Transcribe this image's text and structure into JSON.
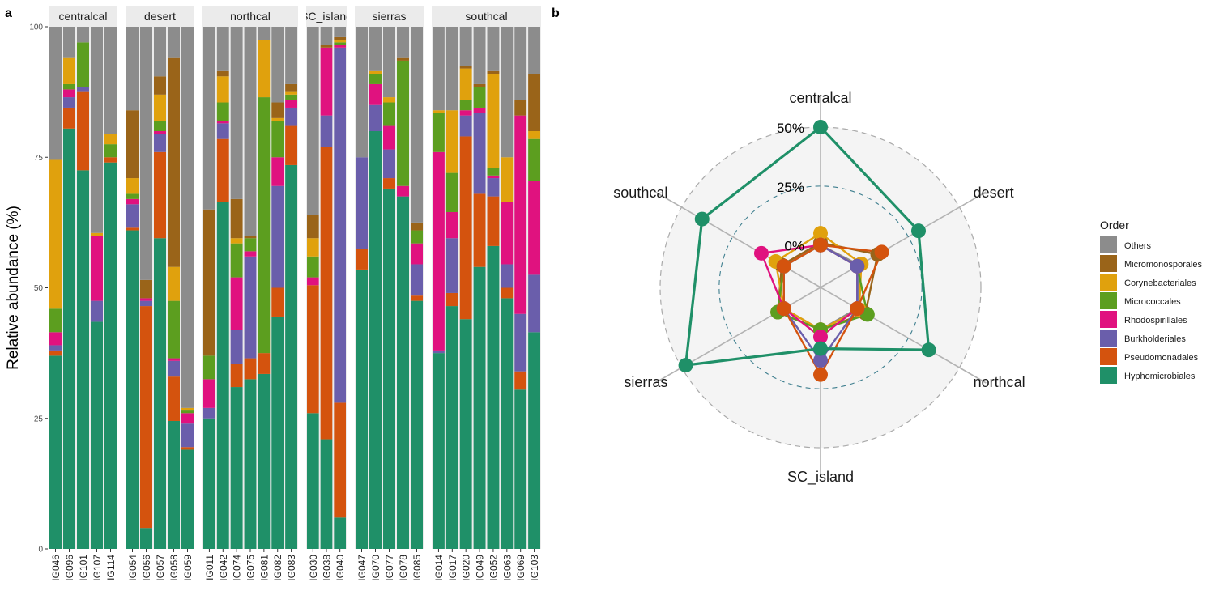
{
  "panel_labels": {
    "a": "a",
    "b": "b"
  },
  "legend": {
    "title": "Order",
    "entries": [
      {
        "label": "Others",
        "color": "#8C8C8C"
      },
      {
        "label": "Micromonosporales",
        "color": "#9A6419"
      },
      {
        "label": "Corynebacteriales",
        "color": "#E0A10D"
      },
      {
        "label": "Micrococcales",
        "color": "#5C9E1F"
      },
      {
        "label": "Rhodospirillales",
        "color": "#E0127F"
      },
      {
        "label": "Burkholderiales",
        "color": "#6A5EAB"
      },
      {
        "label": "Pseudomonadales",
        "color": "#D4530E"
      },
      {
        "label": "Hyphomicrobiales",
        "color": "#1F9068"
      }
    ]
  },
  "chart_data": [
    {
      "type": "bar",
      "stacked": true,
      "ylabel": "Relative abundance (%)",
      "ylim": [
        0,
        100
      ],
      "yticks": [
        "0",
        "25",
        "50",
        "75",
        "100"
      ],
      "stack_order_bottom_to_top": [
        "Hyphomicrobiales",
        "Pseudomonadales",
        "Burkholderiales",
        "Rhodospirillales",
        "Micrococcales",
        "Corynebacteriales",
        "Micromonosporales",
        "Others"
      ],
      "facets": [
        {
          "name": "centralcal",
          "samples": [
            {
              "id": "IG046",
              "values": [
                37,
                1,
                1,
                2.5,
                4.5,
                28.5,
                0,
                25.5
              ]
            },
            {
              "id": "IG096",
              "values": [
                80.5,
                4,
                2,
                1.5,
                1,
                5,
                0,
                6
              ]
            },
            {
              "id": "IG101",
              "values": [
                72.5,
                15,
                1,
                0,
                8.5,
                0,
                0,
                3
              ]
            },
            {
              "id": "IG107",
              "values": [
                43.5,
                0,
                4,
                12.5,
                0,
                0.5,
                0,
                39.5
              ]
            },
            {
              "id": "IG114",
              "values": [
                74,
                1,
                0,
                0,
                2.5,
                2,
                0,
                20.5
              ]
            }
          ]
        },
        {
          "name": "desert",
          "samples": [
            {
              "id": "IG054",
              "values": [
                61,
                0.5,
                4.5,
                1,
                1,
                3,
                13,
                16
              ]
            },
            {
              "id": "IG056",
              "values": [
                4,
                42.5,
                1,
                0.5,
                0,
                0,
                3.5,
                48.5
              ]
            },
            {
              "id": "IG057",
              "values": [
                59.5,
                16.5,
                3.5,
                0.5,
                2,
                5,
                3.5,
                9.5
              ]
            },
            {
              "id": "IG058",
              "values": [
                24.5,
                8.5,
                3,
                0.5,
                11,
                6.5,
                40,
                6
              ]
            },
            {
              "id": "IG059",
              "values": [
                19,
                0.5,
                4.5,
                2,
                0.5,
                0.5,
                0,
                73
              ]
            }
          ]
        },
        {
          "name": "northcal",
          "samples": [
            {
              "id": "IG011",
              "values": [
                25,
                0,
                2,
                5.5,
                4.5,
                0,
                28,
                35
              ]
            },
            {
              "id": "IG042",
              "values": [
                66.5,
                12,
                3,
                0.5,
                3.5,
                5,
                1,
                8.5
              ]
            },
            {
              "id": "IG074",
              "values": [
                31,
                4.5,
                6.5,
                10,
                6.5,
                1,
                7.5,
                33
              ]
            },
            {
              "id": "IG075",
              "values": [
                32.5,
                4,
                19.5,
                1,
                2.5,
                0,
                0.5,
                40
              ]
            },
            {
              "id": "IG081",
              "values": [
                33.5,
                4,
                0,
                0,
                49,
                11,
                0,
                2.5
              ]
            },
            {
              "id": "IG082",
              "values": [
                44.5,
                5.5,
                19.5,
                5.5,
                7,
                0.5,
                3,
                14.5
              ]
            },
            {
              "id": "IG083",
              "values": [
                73.5,
                7.5,
                3.5,
                1.5,
                1,
                0.5,
                1.5,
                11
              ]
            }
          ]
        },
        {
          "name": "SC_island",
          "samples": [
            {
              "id": "IG030",
              "values": [
                26,
                24.5,
                0,
                1.5,
                4,
                3.5,
                4.5,
                36
              ]
            },
            {
              "id": "IG038",
              "values": [
                21,
                56,
                6,
                13,
                0,
                0,
                0.5,
                3.5
              ]
            },
            {
              "id": "IG040",
              "values": [
                6,
                22,
                68,
                0.5,
                0.5,
                0.5,
                0.5,
                2
              ]
            }
          ]
        },
        {
          "name": "sierras",
          "samples": [
            {
              "id": "IG047",
              "values": [
                53.5,
                4,
                17.5,
                0,
                0,
                0,
                0,
                25
              ]
            },
            {
              "id": "IG070",
              "values": [
                80,
                0,
                5,
                4,
                2,
                0.5,
                0,
                8.5
              ]
            },
            {
              "id": "IG077",
              "values": [
                69,
                2,
                5.5,
                4.5,
                4.5,
                1,
                0,
                13.5
              ]
            },
            {
              "id": "IG078",
              "values": [
                67.5,
                0,
                0,
                2,
                24,
                0,
                0.5,
                6
              ]
            },
            {
              "id": "IG085",
              "values": [
                47.5,
                1,
                6,
                4,
                2.5,
                0,
                1.5,
                37.5
              ]
            }
          ]
        },
        {
          "name": "southcal",
          "samples": [
            {
              "id": "IG014",
              "values": [
                37.5,
                0,
                0.5,
                38,
                7.5,
                0.5,
                0,
                16
              ]
            },
            {
              "id": "IG017",
              "values": [
                46.5,
                2.5,
                10.5,
                5,
                7.5,
                12,
                0,
                16
              ]
            },
            {
              "id": "IG020",
              "values": [
                44,
                35,
                4,
                1,
                2,
                6,
                0.5,
                7.5
              ]
            },
            {
              "id": "IG049",
              "values": [
                54,
                14,
                15.5,
                1,
                4,
                0,
                0.5,
                11
              ]
            },
            {
              "id": "IG052",
              "values": [
                58,
                9.5,
                3.5,
                0.5,
                1.5,
                18,
                0.5,
                8.5
              ]
            },
            {
              "id": "IG063",
              "values": [
                48,
                2,
                4.5,
                12,
                0,
                8.5,
                0,
                25
              ]
            },
            {
              "id": "IG069",
              "values": [
                30.5,
                3.5,
                11,
                38,
                0,
                0,
                3,
                14
              ]
            },
            {
              "id": "IG103",
              "values": [
                41.5,
                0,
                11,
                18,
                8,
                1.5,
                11,
                9
              ]
            }
          ]
        }
      ]
    },
    {
      "type": "radar",
      "axes": [
        "centralcal",
        "desert",
        "northcal",
        "SC_island",
        "sierras",
        "southcal"
      ],
      "rmax": 50,
      "ring_labels": [
        "0%",
        "25%",
        "50%"
      ],
      "rings": [
        25,
        50
      ],
      "offset_fraction": 0.264,
      "series": [
        {
          "name": "Others",
          "values": [
            0,
            1,
            0,
            0,
            0,
            0
          ]
        },
        {
          "name": "Micromonosporales",
          "values": [
            1,
            10,
            4,
            0,
            3,
            1
          ]
        },
        {
          "name": "Corynebacteriales",
          "values": [
            5,
            2,
            1,
            0,
            0,
            4
          ]
        },
        {
          "name": "Micrococcales",
          "values": [
            0,
            0,
            5,
            0,
            3,
            0
          ]
        },
        {
          "name": "Rhodospirillales",
          "values": [
            0,
            0,
            0,
            3,
            0,
            11
          ]
        },
        {
          "name": "Burkholderiales",
          "values": [
            0,
            0,
            0,
            13,
            0,
            0
          ]
        },
        {
          "name": "Pseudomonadales",
          "values": [
            0,
            12,
            0,
            19,
            0,
            0
          ]
        },
        {
          "name": "Hyphomicrobiales",
          "values": [
            50,
            30,
            35,
            8,
            48,
            40
          ]
        }
      ]
    }
  ]
}
